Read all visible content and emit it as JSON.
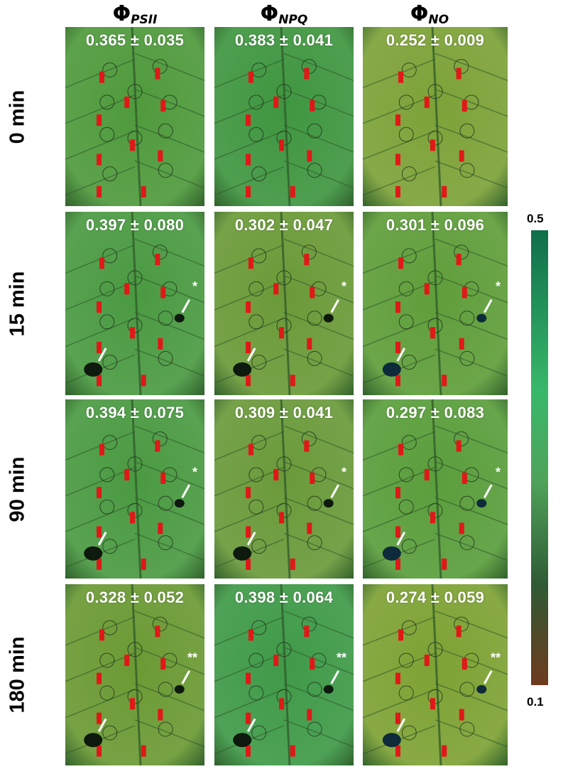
{
  "columns": [
    {
      "symbol": "Φ",
      "subscript": "PSII"
    },
    {
      "symbol": "Φ",
      "subscript": "NPQ"
    },
    {
      "symbol": "Φ",
      "subscript": "NO"
    }
  ],
  "rows": [
    {
      "label": "0 min",
      "values": [
        "0.365 ± 0.035",
        "0.383 ± 0.041",
        "0.252 ± 0.009"
      ],
      "marker": "",
      "lesions": false
    },
    {
      "label": "15 min",
      "values": [
        "0.397 ± 0.080",
        "0.302 ± 0.047",
        "0.301 ± 0.096"
      ],
      "marker": "*",
      "lesions": true
    },
    {
      "label": "90 min",
      "values": [
        "0.394 ± 0.075",
        "0.309 ± 0.041",
        "0.297 ± 0.083"
      ],
      "marker": "*",
      "lesions": true
    },
    {
      "label": "180 min",
      "values": [
        "0.328 ± 0.052",
        "0.398 ± 0.064",
        "0.274 ± 0.059"
      ],
      "marker": "**",
      "lesions": true
    }
  ],
  "colorbar": {
    "max_label": "0.5",
    "min_label": "0.1",
    "max_color": "#0f6e4a",
    "mid_color": "#38b86a",
    "min_color": "#6e3a1e"
  },
  "leaf_tints": [
    [
      "#4f9a3c",
      "#3f9640",
      "#7da238"
    ],
    [
      "#4a9a42",
      "#6b9a38",
      "#5f9e3a"
    ],
    [
      "#4a9a42",
      "#6a9a3a",
      "#5a9e3c"
    ],
    [
      "#6b9a34",
      "#3f9a48",
      "#7ea234"
    ]
  ]
}
